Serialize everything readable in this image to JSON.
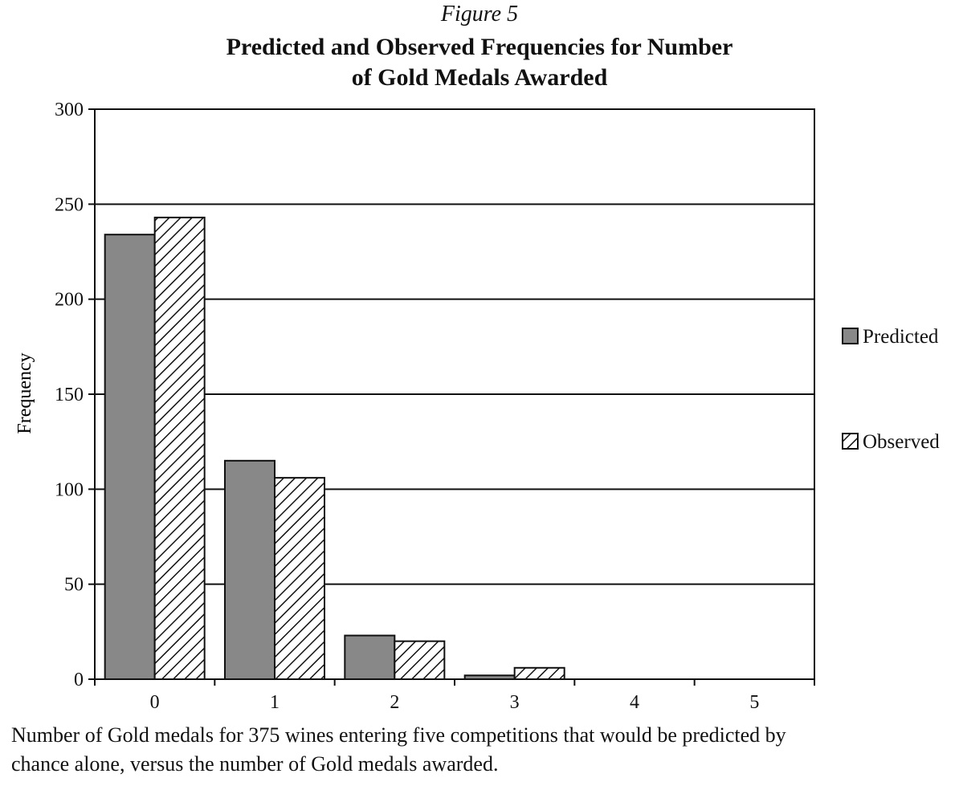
{
  "figure_label": "Figure 5",
  "title_lines": [
    "Predicted and Observed Frequencies for Number",
    "of Gold Medals Awarded"
  ],
  "caption_lines": [
    "Number of Gold medals for 375 wines entering five competitions that would be predicted by",
    "chance alone, versus the number of Gold medals awarded."
  ],
  "colors": {
    "predicted_fill": "#888888",
    "observed_fill": "#ffffff",
    "observed_hatch": "#111111",
    "axis": "#111111",
    "grid": "#111111"
  },
  "chart_data": {
    "type": "bar",
    "title": "Predicted and Observed Frequencies for Number of Gold Medals Awarded",
    "xlabel": "",
    "ylabel": "Frequency",
    "categories": [
      "0",
      "1",
      "2",
      "3",
      "4",
      "5"
    ],
    "series": [
      {
        "name": "Predicted",
        "values": [
          234,
          115,
          23,
          2,
          0,
          0
        ]
      },
      {
        "name": "Observed",
        "values": [
          243,
          106,
          20,
          6,
          0,
          0
        ]
      }
    ],
    "ylim": [
      0,
      300
    ],
    "yticks": [
      "0",
      "50",
      "100",
      "150",
      "200",
      "250",
      "300"
    ],
    "grid": true,
    "legend_position": "right"
  }
}
